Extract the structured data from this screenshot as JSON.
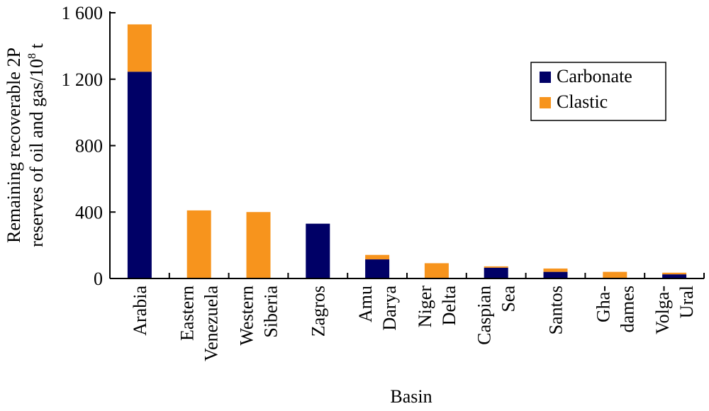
{
  "chart_data": {
    "type": "bar",
    "stacked": true,
    "title": "",
    "xlabel": "Basin",
    "ylabel_line1": "Remaining recoverable 2P",
    "ylabel_line2": "reserves of oil and gas/10",
    "ylabel_sup": "8",
    "ylabel_unit": " t",
    "ylim": [
      0,
      1600
    ],
    "yticks": [
      0,
      400,
      800,
      1200,
      1600
    ],
    "ytick_labels": [
      "0",
      "400",
      "800",
      "1 200",
      "1 600"
    ],
    "grid": false,
    "legend_position": "top-right",
    "categories": [
      [
        "Arabia"
      ],
      [
        "Eastern",
        "Venezuela"
      ],
      [
        "Western",
        "Siberia"
      ],
      [
        "Zagros"
      ],
      [
        "Amu",
        "Darya"
      ],
      [
        "Niger",
        "Delta"
      ],
      [
        "Caspian",
        "Sea"
      ],
      [
        "Santos"
      ],
      [
        "Gha-",
        "dames"
      ],
      [
        "Volga-",
        "Ural"
      ]
    ],
    "series": [
      {
        "name": "Carbonate",
        "color": "#000066",
        "values": [
          1245,
          0,
          0,
          330,
          115,
          0,
          65,
          40,
          0,
          25
        ]
      },
      {
        "name": "Clastic",
        "color": "#f7941d",
        "values": [
          285,
          410,
          400,
          0,
          27,
          92,
          8,
          20,
          40,
          10
        ]
      }
    ]
  }
}
